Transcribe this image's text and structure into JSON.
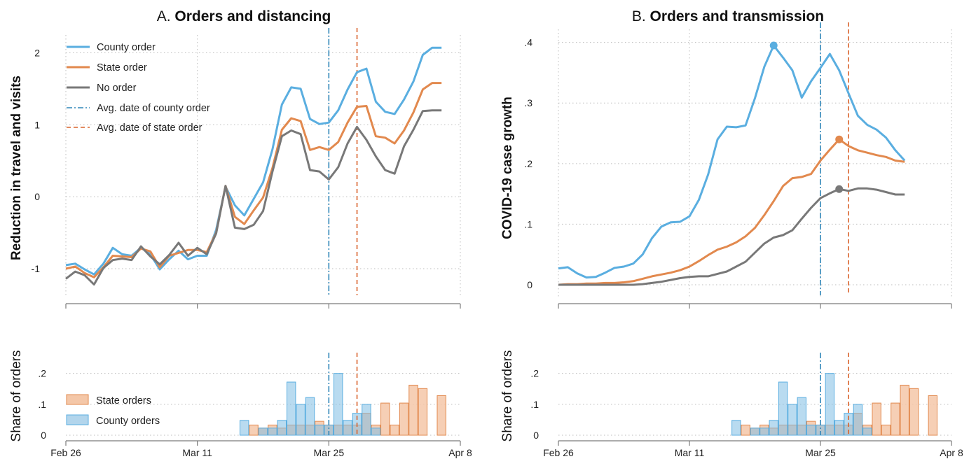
{
  "colors": {
    "county": "#5aaee0",
    "state": "#e2894e",
    "none": "#787878",
    "county_vline": "#2f86b8",
    "state_vline": "#d9632c"
  },
  "panel_a": {
    "title_prefix": "A. ",
    "title_bold": "Orders and distancing",
    "ylabel": "Reduction in travel and visits",
    "hist_ylabel": "Share of orders"
  },
  "panel_b": {
    "title_prefix": "B. ",
    "title_bold": "Orders and transmission",
    "ylabel": "COVID-19 case growth",
    "hist_ylabel": "Share of orders"
  },
  "legend_top": [
    "County order",
    "State order",
    "No order",
    "Avg. date of county order",
    "Avg. date of state order"
  ],
  "legend_hist": [
    "State orders",
    "County orders"
  ],
  "x_ticks": [
    "Feb 26",
    "Mar 11",
    "Mar 25",
    "Apr 8"
  ],
  "chart_data": [
    {
      "type": "line",
      "title": "A. Orders and distancing",
      "ylabel": "Reduction in travel and visits",
      "x_unit": "days since Feb 26",
      "x_tick_labels": [
        "Feb 26",
        "Mar 11",
        "Mar 25",
        "Apr 8"
      ],
      "y_ticks": [
        "-1",
        "0",
        "1",
        "2"
      ],
      "ylim": [
        -1.35,
        2.15
      ],
      "xlim": [
        0,
        42
      ],
      "vlines": {
        "county_order": 28,
        "state_order": 31
      },
      "series": [
        {
          "name": "County order",
          "x": [
            0,
            1,
            2,
            3,
            4,
            5,
            6,
            7,
            8,
            9,
            10,
            11,
            12,
            13,
            14,
            15,
            16,
            17,
            18,
            19,
            20,
            21,
            22,
            23,
            24,
            25,
            26,
            27,
            28,
            29,
            30,
            31,
            32,
            33,
            34,
            35,
            36,
            37,
            38,
            39,
            40
          ],
          "values": [
            -0.95,
            -0.93,
            -1.01,
            -1.08,
            -0.93,
            -0.71,
            -0.8,
            -0.82,
            -0.71,
            -0.8,
            -1.01,
            -0.87,
            -0.75,
            -0.87,
            -0.82,
            -0.82,
            -0.46,
            0.14,
            -0.12,
            -0.26,
            -0.03,
            0.2,
            0.66,
            1.28,
            1.52,
            1.5,
            1.08,
            1.01,
            1.03,
            1.2,
            1.49,
            1.73,
            1.78,
            1.32,
            1.18,
            1.15,
            1.35,
            1.6,
            1.97,
            2.07,
            2.07
          ]
        },
        {
          "name": "State order",
          "x": [
            0,
            1,
            2,
            3,
            4,
            5,
            6,
            7,
            8,
            9,
            10,
            11,
            12,
            13,
            14,
            15,
            16,
            17,
            18,
            19,
            20,
            21,
            22,
            23,
            24,
            25,
            26,
            27,
            28,
            29,
            30,
            31,
            32,
            33,
            34,
            35,
            36,
            37,
            38,
            39,
            40
          ],
          "values": [
            -1.0,
            -0.97,
            -1.06,
            -1.12,
            -0.98,
            -0.82,
            -0.83,
            -0.84,
            -0.72,
            -0.76,
            -0.98,
            -0.82,
            -0.78,
            -0.74,
            -0.74,
            -0.77,
            -0.5,
            0.15,
            -0.28,
            -0.38,
            -0.19,
            -0.01,
            0.4,
            0.93,
            1.09,
            1.05,
            0.65,
            0.69,
            0.65,
            0.76,
            1.03,
            1.25,
            1.26,
            0.84,
            0.82,
            0.74,
            0.92,
            1.17,
            1.49,
            1.58,
            1.58
          ]
        },
        {
          "name": "No order",
          "x": [
            0,
            1,
            2,
            3,
            4,
            5,
            6,
            7,
            8,
            9,
            10,
            11,
            12,
            13,
            14,
            15,
            16,
            17,
            18,
            19,
            20,
            21,
            22,
            23,
            24,
            25,
            26,
            27,
            28,
            29,
            30,
            31,
            32,
            33,
            34,
            35,
            36,
            37,
            38,
            39,
            40
          ],
          "values": [
            -1.14,
            -1.04,
            -1.09,
            -1.22,
            -0.99,
            -0.88,
            -0.86,
            -0.88,
            -0.69,
            -0.83,
            -0.94,
            -0.81,
            -0.64,
            -0.82,
            -0.71,
            -0.8,
            -0.51,
            0.15,
            -0.43,
            -0.45,
            -0.39,
            -0.2,
            0.35,
            0.84,
            0.92,
            0.87,
            0.37,
            0.35,
            0.24,
            0.41,
            0.74,
            0.97,
            0.79,
            0.56,
            0.37,
            0.32,
            0.7,
            0.93,
            1.19,
            1.2,
            1.2
          ]
        }
      ]
    },
    {
      "type": "bar",
      "title": "",
      "ylabel": "Share of orders",
      "y_ticks": [
        "0",
        ".1",
        ".2"
      ],
      "ylim": [
        0,
        0.24
      ],
      "series": [
        {
          "name": "State orders",
          "x": [
            20,
            21,
            22,
            23,
            24,
            25,
            26,
            27,
            28,
            29,
            30,
            31,
            32,
            33,
            34,
            35,
            36,
            37,
            38,
            40
          ],
          "values": [
            0.033,
            0.023,
            0.033,
            0.023,
            0.033,
            0.033,
            0.033,
            0.045,
            0.033,
            0.033,
            0.033,
            0.033,
            0.071,
            0.033,
            0.104,
            0.033,
            0.104,
            0.162,
            0.151,
            0.128
          ]
        },
        {
          "name": "County orders",
          "x": [
            19,
            21,
            22,
            23,
            24,
            25,
            26,
            27,
            28,
            29,
            30,
            31,
            32,
            33,
            34
          ],
          "values": [
            0.048,
            0.023,
            0.023,
            0.048,
            0.172,
            0.1,
            0.122,
            0.033,
            0.033,
            0.2,
            0.048,
            0.071,
            0.1,
            0.023,
            0.0
          ]
        }
      ]
    },
    {
      "type": "line",
      "title": "B. Orders and transmission",
      "ylabel": "COVID-19 case growth",
      "y_ticks": [
        "0",
        ".1",
        ".2",
        ".3",
        ".4"
      ],
      "ylim": [
        -0.015,
        0.41
      ],
      "series": [
        {
          "name": "County order",
          "x": [
            0,
            1,
            2,
            3,
            4,
            5,
            6,
            7,
            8,
            9,
            10,
            11,
            12,
            13,
            14,
            15,
            16,
            17,
            18,
            19,
            20,
            21,
            22,
            23,
            24,
            25,
            26,
            27,
            28,
            29,
            30,
            31,
            32,
            33,
            34,
            35,
            36,
            37
          ],
          "values": [
            0.027,
            0.029,
            0.019,
            0.012,
            0.013,
            0.02,
            0.028,
            0.03,
            0.035,
            0.05,
            0.077,
            0.096,
            0.103,
            0.104,
            0.113,
            0.14,
            0.182,
            0.24,
            0.261,
            0.26,
            0.263,
            0.308,
            0.36,
            0.395,
            0.375,
            0.354,
            0.309,
            0.336,
            0.358,
            0.381,
            0.354,
            0.316,
            0.279,
            0.264,
            0.256,
            0.243,
            0.222,
            0.205
          ]
        },
        {
          "name": "State order",
          "x": [
            0,
            1,
            2,
            3,
            4,
            5,
            6,
            7,
            8,
            9,
            10,
            11,
            12,
            13,
            14,
            15,
            16,
            17,
            18,
            19,
            20,
            21,
            22,
            23,
            24,
            25,
            26,
            27,
            28,
            29,
            30,
            31,
            32,
            33,
            34,
            35,
            36,
            37
          ],
          "values": [
            0.0,
            0.001,
            0.001,
            0.002,
            0.002,
            0.003,
            0.003,
            0.004,
            0.006,
            0.01,
            0.014,
            0.017,
            0.02,
            0.024,
            0.03,
            0.039,
            0.049,
            0.058,
            0.063,
            0.07,
            0.08,
            0.094,
            0.115,
            0.138,
            0.163,
            0.176,
            0.178,
            0.183,
            0.205,
            0.223,
            0.24,
            0.229,
            0.222,
            0.218,
            0.214,
            0.211,
            0.205,
            0.203
          ]
        },
        {
          "name": "No order",
          "x": [
            0,
            1,
            2,
            3,
            4,
            5,
            6,
            7,
            8,
            9,
            10,
            11,
            12,
            13,
            14,
            15,
            16,
            17,
            18,
            19,
            20,
            21,
            22,
            23,
            24,
            25,
            26,
            27,
            28,
            29,
            30,
            31,
            32,
            33,
            34,
            35,
            36,
            37
          ],
          "values": [
            0.0,
            0.0,
            0.0,
            0.0,
            0.0,
            0.0,
            0.0,
            0.0,
            0.0,
            0.001,
            0.003,
            0.005,
            0.008,
            0.011,
            0.013,
            0.014,
            0.014,
            0.018,
            0.022,
            0.03,
            0.038,
            0.053,
            0.068,
            0.078,
            0.082,
            0.09,
            0.109,
            0.127,
            0.143,
            0.151,
            0.158,
            0.155,
            0.159,
            0.159,
            0.157,
            0.153,
            0.149,
            0.149
          ]
        }
      ],
      "markers": [
        {
          "series": "County order",
          "x": 23,
          "y": 0.395
        },
        {
          "series": "State order",
          "x": 30,
          "y": 0.24
        },
        {
          "series": "No order",
          "x": 30,
          "y": 0.158
        }
      ]
    },
    {
      "type": "bar",
      "title": "",
      "ylabel": "Share of orders",
      "y_ticks": [
        "0",
        ".1",
        ".2"
      ],
      "ylim": [
        0,
        0.24
      ],
      "series": [
        {
          "name": "State orders",
          "x": [
            20,
            21,
            22,
            23,
            24,
            25,
            26,
            27,
            28,
            29,
            30,
            31,
            32,
            33,
            34,
            35,
            36,
            37,
            38,
            40
          ],
          "values": [
            0.033,
            0.023,
            0.033,
            0.023,
            0.033,
            0.033,
            0.033,
            0.045,
            0.033,
            0.033,
            0.033,
            0.033,
            0.071,
            0.033,
            0.104,
            0.033,
            0.104,
            0.162,
            0.151,
            0.128
          ]
        },
        {
          "name": "County orders",
          "x": [
            19,
            21,
            22,
            23,
            24,
            25,
            26,
            27,
            28,
            29,
            30,
            31,
            32,
            33,
            34
          ],
          "values": [
            0.048,
            0.023,
            0.023,
            0.048,
            0.172,
            0.1,
            0.122,
            0.033,
            0.033,
            0.2,
            0.048,
            0.071,
            0.1,
            0.023,
            0.0
          ]
        }
      ]
    }
  ]
}
